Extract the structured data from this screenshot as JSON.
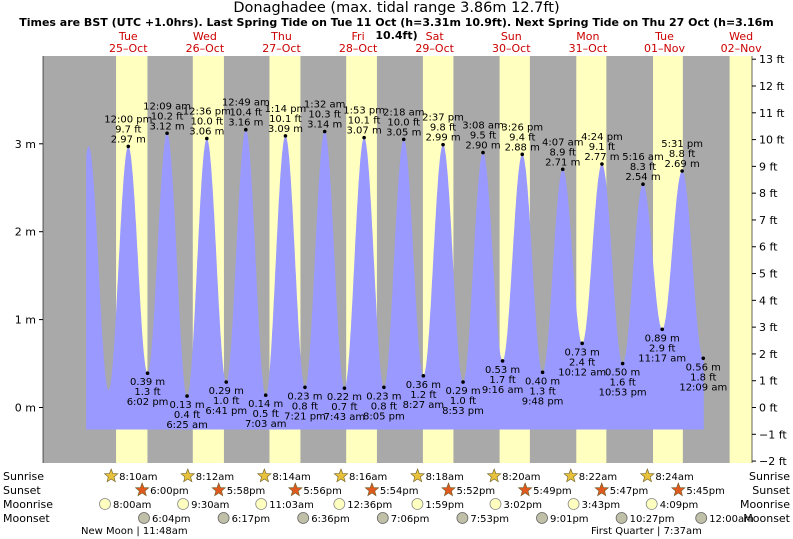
{
  "chart_data": {
    "type": "area",
    "title": "Donaghadee (max. tidal range 3.86m 12.7ft)",
    "subtitle": "Times are BST (UTC +1.0hrs). Last Spring Tide on Tue 11 Oct (h=3.31m 10.9ft). Next Spring Tide on Thu 27 Oct (h=3.16m 10.4ft)",
    "days": [
      {
        "dow": "Tue",
        "date": "25–Oct"
      },
      {
        "dow": "Wed",
        "date": "26–Oct"
      },
      {
        "dow": "Thu",
        "date": "27–Oct"
      },
      {
        "dow": "Fri",
        "date": "28–Oct"
      },
      {
        "dow": "Sat",
        "date": "29–Oct"
      },
      {
        "dow": "Sun",
        "date": "30–Oct"
      },
      {
        "dow": "Mon",
        "date": "31–Oct"
      },
      {
        "dow": "Tue",
        "date": "01–Nov"
      },
      {
        "dow": "Wed",
        "date": "02–Nov"
      }
    ],
    "y_left_ticks": [
      {
        "v": 0,
        "label": "0 m"
      },
      {
        "v": 1,
        "label": "1 m"
      },
      {
        "v": 2,
        "label": "2 m"
      },
      {
        "v": 3,
        "label": "3 m"
      }
    ],
    "y_right_ticks": [
      "−2 ft",
      "−1 ft",
      "0 ft",
      "1 ft",
      "2 ft",
      "3 ft",
      "4 ft",
      "5 ft",
      "6 ft",
      "7 ft",
      "8 ft",
      "9 ft",
      "10 ft",
      "11 ft",
      "12 ft",
      "13 ft"
    ],
    "ylim_m": [
      -0.6,
      4.0
    ],
    "tides": [
      {
        "type": "high",
        "time": "12:00 pm",
        "ft": "9.7 ft",
        "h": 2.97
      },
      {
        "type": "low",
        "time": "6:02 pm",
        "ft": "1.3 ft",
        "h": 0.39
      },
      {
        "type": "high",
        "time": "12:09 am",
        "ft": "10.2 ft",
        "h": 3.12
      },
      {
        "type": "low",
        "time": "6:25 am",
        "ft": "0.4 ft",
        "h": 0.13
      },
      {
        "type": "high",
        "time": "12:36 pm",
        "ft": "10.0 ft",
        "h": 3.06
      },
      {
        "type": "low",
        "time": "6:41 pm",
        "ft": "1.0 ft",
        "h": 0.29
      },
      {
        "type": "high",
        "time": "12:49 am",
        "ft": "10.4 ft",
        "h": 3.16
      },
      {
        "type": "low",
        "time": "7:03 am",
        "ft": "0.5 ft",
        "h": 0.14
      },
      {
        "type": "high",
        "time": "1:14 pm",
        "ft": "10.1 ft",
        "h": 3.09
      },
      {
        "type": "low",
        "time": "7:21 pm",
        "ft": "0.8 ft",
        "h": 0.23
      },
      {
        "type": "high",
        "time": "1:32 am",
        "ft": "10.3 ft",
        "h": 3.14
      },
      {
        "type": "low",
        "time": "7:43 am",
        "ft": "0.7 ft",
        "h": 0.22
      },
      {
        "type": "high",
        "time": "1:53 pm",
        "ft": "10.1 ft",
        "h": 3.07
      },
      {
        "type": "low",
        "time": "8:05 pm",
        "ft": "0.8 ft",
        "h": 0.23
      },
      {
        "type": "high",
        "time": "2:18 am",
        "ft": "10.0 ft",
        "h": 3.05
      },
      {
        "type": "low",
        "time": "8:27 am",
        "ft": "1.2 ft",
        "h": 0.36
      },
      {
        "type": "high",
        "time": "2:37 pm",
        "ft": "9.8 ft",
        "h": 2.99
      },
      {
        "type": "low",
        "time": "8:53 pm",
        "ft": "1.0 ft",
        "h": 0.29
      },
      {
        "type": "high",
        "time": "3:08 am",
        "ft": "9.5 ft",
        "h": 2.9
      },
      {
        "type": "low",
        "time": "9:16 am",
        "ft": "1.7 ft",
        "h": 0.53
      },
      {
        "type": "high",
        "time": "3:26 pm",
        "ft": "9.4 ft",
        "h": 2.88
      },
      {
        "type": "low",
        "time": "9:48 pm",
        "ft": "1.3 ft",
        "h": 0.4
      },
      {
        "type": "high",
        "time": "4:07 am",
        "ft": "8.9 ft",
        "h": 2.71
      },
      {
        "type": "low",
        "time": "10:12 am",
        "ft": "2.4 ft",
        "h": 0.73
      },
      {
        "type": "high",
        "time": "4:24 pm",
        "ft": "9.1 ft",
        "h": 2.77
      },
      {
        "type": "low",
        "time": "10:53 pm",
        "ft": "1.6 ft",
        "h": 0.5
      },
      {
        "type": "high",
        "time": "5:16 am",
        "ft": "8.3 ft",
        "h": 2.54
      },
      {
        "type": "low",
        "time": "11:17 am",
        "ft": "2.9 ft",
        "h": 0.89
      },
      {
        "type": "high",
        "time": "5:31 pm",
        "ft": "8.8 ft",
        "h": 2.69
      },
      {
        "type": "low",
        "time": "12:09 am",
        "ft": "1.8 ft",
        "h": 0.56
      }
    ],
    "bottom_labels": {
      "sunrise": "Sunrise",
      "sunset": "Sunset",
      "moonrise": "Moonrise",
      "moonset": "Moonset"
    },
    "sunrise": [
      "8:10am",
      "8:12am",
      "8:14am",
      "8:16am",
      "8:18am",
      "8:20am",
      "8:22am",
      "8:24am"
    ],
    "sunset": [
      "6:00pm",
      "5:58pm",
      "5:56pm",
      "5:54pm",
      "5:52pm",
      "5:49pm",
      "5:47pm",
      "5:45pm"
    ],
    "moonrise": [
      "8:00am",
      "9:30am",
      "11:03am",
      "12:36pm",
      "1:59pm",
      "3:02pm",
      "3:43pm",
      "4:09pm"
    ],
    "moonset": [
      "6:04pm",
      "6:17pm",
      "6:36pm",
      "7:06pm",
      "7:53pm",
      "9:01pm",
      "10:27pm",
      "12:00am"
    ],
    "moon_phases": [
      "New Moon | 11:48am",
      "First Quarter | 7:37am"
    ],
    "colors": {
      "night": "#a9a9a9",
      "day": "#ffffc0",
      "water": "#9999ff",
      "sun": "#e8c23a",
      "sunset": "#e05a20",
      "moonrise": "#ffffc0",
      "moonset": "#c0c0a8"
    }
  }
}
